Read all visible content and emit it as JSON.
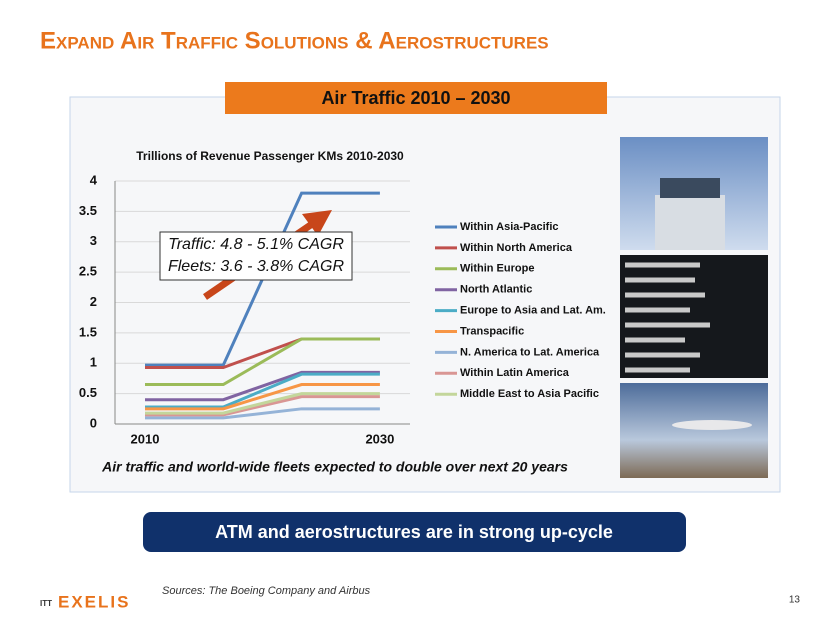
{
  "title": "Expand Air Traffic Solutions & Aerostructures",
  "banner": "Air Traffic 2010 – 2030",
  "caption": "Air traffic and world-wide fleets expected to double over next 20 years",
  "message": "ATM and aerostructures are in strong up-cycle",
  "sources": "Sources:  The Boeing Company and Airbus",
  "page_number": "13",
  "logo": {
    "prefix": "ITT",
    "name": "EXELIS"
  },
  "chart_data": {
    "type": "line",
    "title": "Trillions of Revenue Passenger KMs 2010-2030",
    "categories": [
      "2010",
      null,
      null,
      "2030"
    ],
    "annotations": [
      "Traffic: 4.8 - 5.1% CAGR",
      "Fleets: 3.6 - 3.8% CAGR"
    ],
    "ylim": [
      0,
      4
    ],
    "yticks": [
      0,
      0.5,
      1,
      1.5,
      2,
      2.5,
      3,
      3.5,
      4
    ],
    "grid": true,
    "legend": "right",
    "series": [
      {
        "name": "Within Asia-Pacific",
        "color": "#4f81bd",
        "values": [
          0.97,
          0.97,
          3.8,
          3.8
        ]
      },
      {
        "name": "Within North America",
        "color": "#c0504d",
        "values": [
          0.93,
          0.93,
          1.4,
          1.4
        ]
      },
      {
        "name": "Within Europe",
        "color": "#9bbb59",
        "values": [
          0.65,
          0.65,
          1.4,
          1.4
        ]
      },
      {
        "name": "North Atlantic",
        "color": "#8064a2",
        "values": [
          0.4,
          0.4,
          0.85,
          0.85
        ]
      },
      {
        "name": "Europe to Asia and Lat. Am.",
        "color": "#4bacc6",
        "values": [
          0.28,
          0.28,
          0.82,
          0.82
        ]
      },
      {
        "name": "Transpacific",
        "color": "#f79646",
        "values": [
          0.25,
          0.25,
          0.65,
          0.65
        ]
      },
      {
        "name": "N. America to Lat. America",
        "color": "#95b3d7",
        "values": [
          0.1,
          0.1,
          0.25,
          0.25
        ]
      },
      {
        "name": "Within Latin America",
        "color": "#d99694",
        "values": [
          0.15,
          0.15,
          0.45,
          0.45
        ]
      },
      {
        "name": "Middle East to Asia Pacific",
        "color": "#c3d69b",
        "values": [
          0.18,
          0.18,
          0.5,
          0.5
        ]
      }
    ]
  }
}
